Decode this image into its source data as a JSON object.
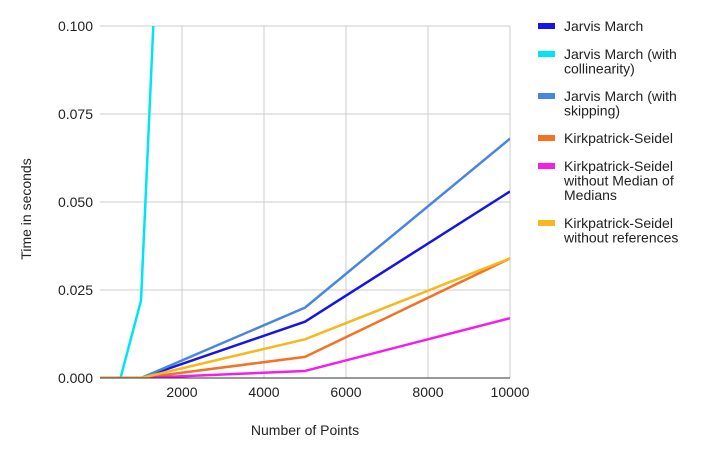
{
  "chart_data": {
    "type": "line",
    "title": "",
    "xlabel": "Number of Points",
    "ylabel": "Time in seconds",
    "xlim": [
      0,
      10000
    ],
    "ylim": [
      0,
      0.1
    ],
    "x_ticks": [
      {
        "value": 2000,
        "label": "2000"
      },
      {
        "value": 4000,
        "label": "4000"
      },
      {
        "value": 6000,
        "label": "6000"
      },
      {
        "value": 8000,
        "label": "8000"
      },
      {
        "value": 10000,
        "label": "10000"
      }
    ],
    "y_ticks": [
      {
        "value": 0,
        "label": "0.000"
      },
      {
        "value": 0.025,
        "label": "0.025"
      },
      {
        "value": 0.05,
        "label": "0.050"
      },
      {
        "value": 0.075,
        "label": "0.075"
      },
      {
        "value": 0.1,
        "label": "0.100"
      }
    ],
    "grid": true,
    "legend_position": "right",
    "series": [
      {
        "name": "Jarvis March",
        "color": "#1515e6",
        "points": [
          [
            0,
            0
          ],
          [
            1000,
            0
          ],
          [
            5000,
            0.016
          ],
          [
            10000,
            0.053
          ]
        ]
      },
      {
        "name": "Jarvis March (with collinearity)",
        "color": "#00e5f5",
        "points": [
          [
            0,
            0
          ],
          [
            500,
            0
          ],
          [
            1000,
            0.022
          ],
          [
            1300,
            0.1
          ]
        ]
      },
      {
        "name": "Jarvis March (with skipping)",
        "color": "#4a86e0",
        "points": [
          [
            0,
            0
          ],
          [
            1000,
            0
          ],
          [
            5000,
            0.02
          ],
          [
            10000,
            0.068
          ]
        ]
      },
      {
        "name": "Kirkpatrick-Seidel",
        "color": "#f57123",
        "points": [
          [
            0,
            0
          ],
          [
            1000,
            0
          ],
          [
            5000,
            0.006
          ],
          [
            10000,
            0.034
          ]
        ]
      },
      {
        "name": "Kirkpatrick-Seidel without Median of Medians",
        "color": "#f51ee8",
        "points": [
          [
            0,
            0
          ],
          [
            1000,
            0
          ],
          [
            5000,
            0.002
          ],
          [
            10000,
            0.017
          ]
        ]
      },
      {
        "name": "Kirkpatrick-Seidel without references",
        "color": "#f7b81e",
        "points": [
          [
            0,
            0
          ],
          [
            1000,
            0
          ],
          [
            5000,
            0.011
          ],
          [
            10000,
            0.034
          ]
        ]
      }
    ],
    "legend": [
      {
        "lines": [
          "Jarvis March"
        ]
      },
      {
        "lines": [
          "Jarvis March (with",
          "collinearity)"
        ]
      },
      {
        "lines": [
          "Jarvis March (with",
          "skipping)"
        ]
      },
      {
        "lines": [
          "Kirkpatrick-Seidel"
        ]
      },
      {
        "lines": [
          "Kirkpatrick-Seidel",
          "without Median of",
          "Medians"
        ]
      },
      {
        "lines": [
          "Kirkpatrick-Seidel",
          "without references"
        ]
      }
    ]
  }
}
